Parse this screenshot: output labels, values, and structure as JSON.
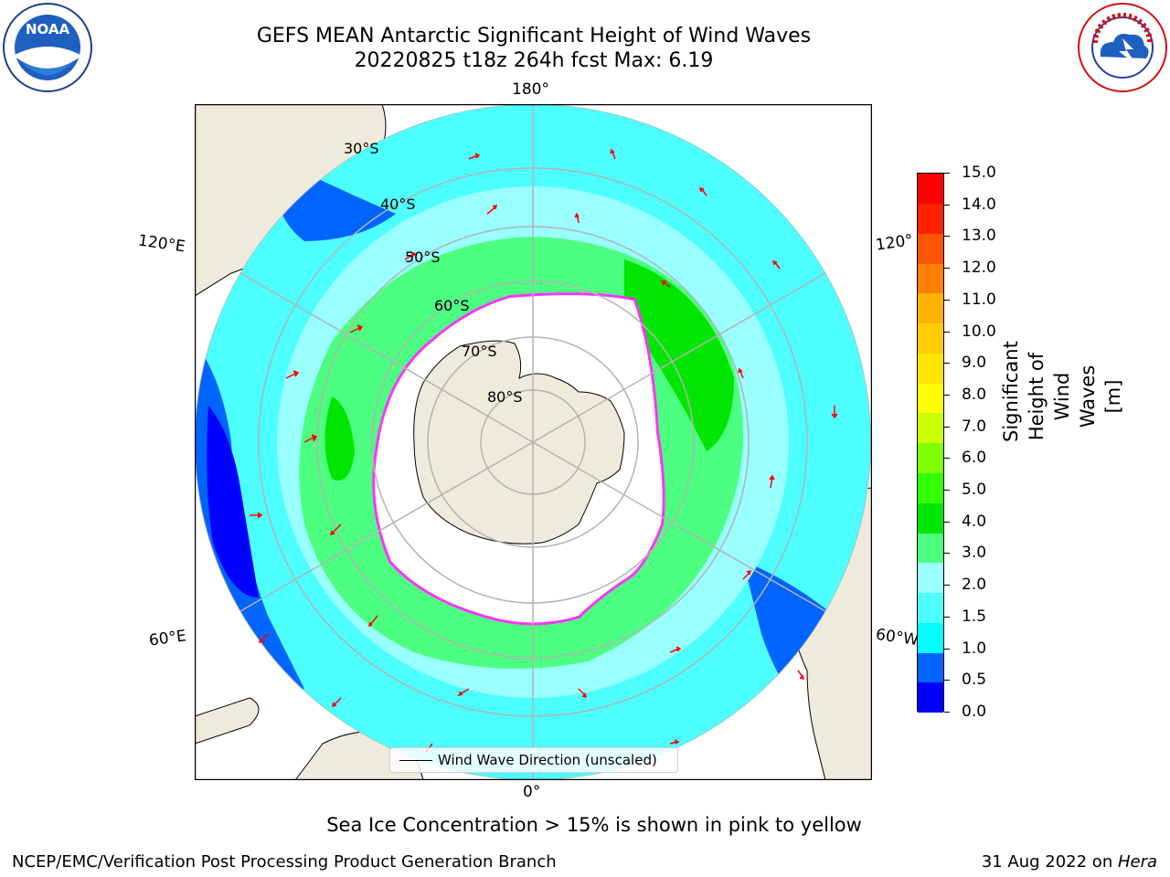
{
  "header": {
    "title_line1": "GEFS MEAN Antarctic Significant Height of Wind Waves",
    "title_line2": "20220825 t18z 264h fcst   Max: 6.19"
  },
  "logos": {
    "left": "NOAA",
    "right": "NATIONAL WEATHER SERVICE"
  },
  "map": {
    "longitude_labels": [
      "180°",
      "0°",
      "120°E",
      "120°",
      "60°E",
      "60°W"
    ],
    "latitude_labels": [
      "30°S",
      "40°S",
      "50°S",
      "60°S",
      "70°S",
      "80°S"
    ],
    "legend": "Wind Wave Direction (unscaled)"
  },
  "colorbar": {
    "title": "Significant Height of Wind Waves [m]",
    "tick_labels": [
      "15.0",
      "14.0",
      "13.0",
      "12.0",
      "11.0",
      "10.0",
      "9.0",
      "8.0",
      "7.0",
      "6.0",
      "5.0",
      "4.0",
      "3.0",
      "2.0",
      "1.5",
      "1.0",
      "0.5",
      "0.0"
    ],
    "colors": [
      "#0000ff",
      "#0064ff",
      "#00ffff",
      "#4dffff",
      "#99ffff",
      "#4dff80",
      "#00e600",
      "#33ff00",
      "#80ff00",
      "#ccff00",
      "#ffff00",
      "#ffe600",
      "#ffcc00",
      "#ffb300",
      "#ff8000",
      "#ff5500",
      "#ff2200",
      "#ff0000"
    ]
  },
  "colors": {
    "land": "#efebdc",
    "ocean_dark": "#0000ff",
    "ocean_mid": "#0064ff",
    "wave_cyan": "#00ffff",
    "wave_light": "#99ffff",
    "wave_green": "#4dff80",
    "wave_bright_green": "#00e600",
    "ice_pink": "#ff33ff",
    "arrow": "#ff0000",
    "grid": "#b3b3b3"
  },
  "notes": {
    "sea_ice": "Sea Ice Concentration > 15% is shown in pink to yellow"
  },
  "footer": {
    "left": "NCEP/EMC/Verification Post Processing Product Generation Branch",
    "right_date": "31 Aug 2022 on ",
    "right_machine": "Hera"
  }
}
